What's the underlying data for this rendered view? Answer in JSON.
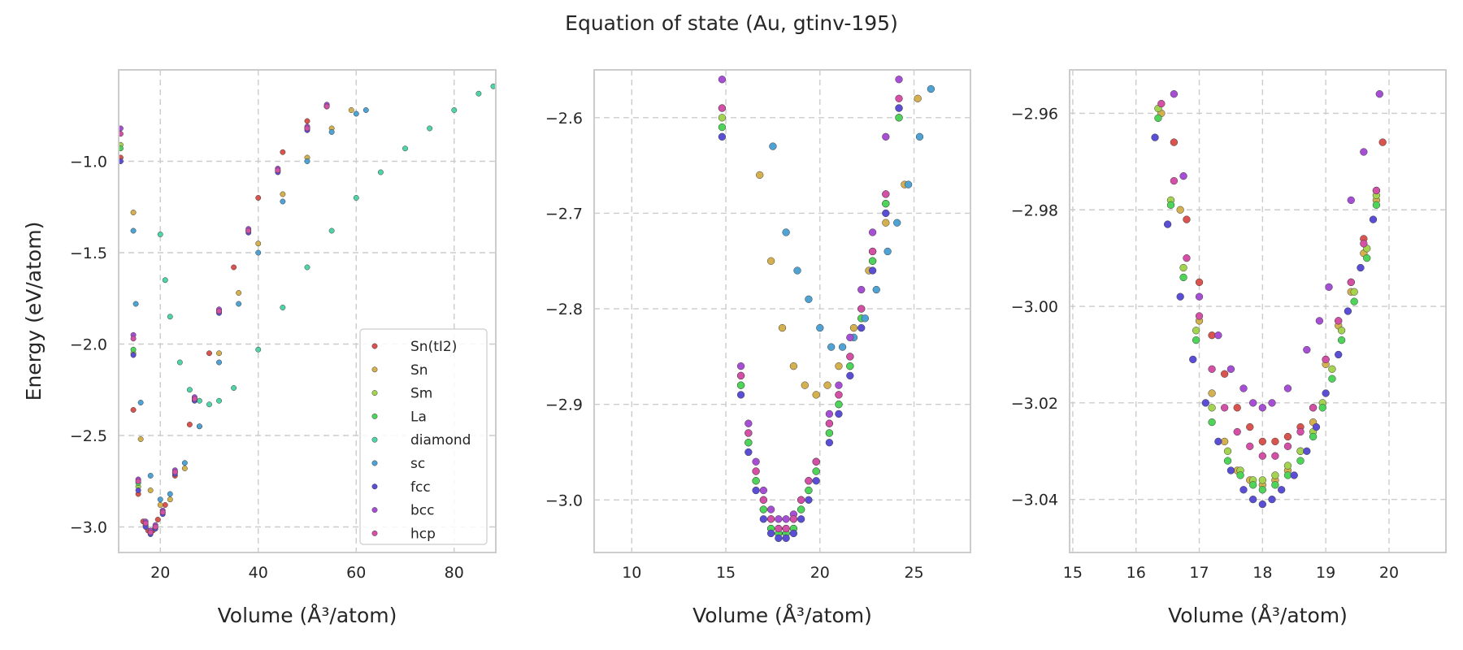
{
  "figure": {
    "title": "Equation of state (Au, gtinv-195)",
    "xlabel": "Volume (Å³/atom)",
    "ylabel": "Energy (eV/atom)"
  },
  "colors": {
    "Sn(tI2)": "#d9534f",
    "Sn": "#d4b04f",
    "Sm": "#a4d44f",
    "La": "#4fd45a",
    "diamond": "#4fd4a8",
    "sc": "#4fa3d4",
    "fcc": "#5a4fd4",
    "bcc": "#a64fd4",
    "hcp": "#d44fa6"
  },
  "chart_data": [
    {
      "type": "scatter",
      "xlim": [
        11.5,
        88.5
      ],
      "ylim": [
        -3.14,
        -0.5
      ],
      "xticks": [
        20,
        40,
        60,
        80
      ],
      "yticks": [
        -3.0,
        -2.5,
        -2.0,
        -1.5,
        -1.0
      ],
      "grid": true,
      "legend": "bottom-right",
      "series": [
        {
          "name": "Sn(tI2)",
          "x": [
            11.9,
            14.5,
            15.5,
            16.5,
            17.5,
            18.5,
            19.5,
            21.0,
            23.0,
            26.0,
            30.0,
            35.0,
            40.0,
            45.0,
            50.0,
            54.0
          ],
          "y": [
            -0.98,
            -2.36,
            -2.82,
            -2.97,
            -3.02,
            -3.02,
            -2.96,
            -2.88,
            -2.72,
            -2.44,
            -2.05,
            -1.58,
            -1.2,
            -0.95,
            -0.78,
            -0.7
          ]
        },
        {
          "name": "Sn",
          "x": [
            14.5,
            16.0,
            18.0,
            20.0,
            22.0,
            25.0,
            28.0,
            32.0,
            36.0,
            40.0,
            45.0,
            50.0,
            55.0,
            59.0
          ],
          "y": [
            -1.28,
            -2.52,
            -2.8,
            -2.88,
            -2.85,
            -2.68,
            -2.45,
            -2.05,
            -1.72,
            -1.45,
            -1.18,
            -0.98,
            -0.82,
            -0.72
          ]
        },
        {
          "name": "Sm",
          "x": [
            11.9,
            14.5,
            15.5,
            17.0,
            18.0,
            19.0,
            20.5,
            23.0,
            27.0,
            32.0,
            38.0,
            44.0,
            50.0,
            54.0
          ],
          "y": [
            -0.91,
            -2.05,
            -2.78,
            -2.99,
            -3.03,
            -3.0,
            -2.92,
            -2.7,
            -2.3,
            -1.82,
            -1.38,
            -1.05,
            -0.82,
            -0.7
          ]
        },
        {
          "name": "La",
          "x": [
            11.9,
            14.5,
            15.5,
            17.0,
            18.0,
            19.0,
            20.5,
            23.0,
            27.0,
            32.0,
            38.0,
            44.0,
            50.0,
            54.0
          ],
          "y": [
            -0.93,
            -2.03,
            -2.76,
            -2.99,
            -3.03,
            -3.0,
            -2.92,
            -2.7,
            -2.3,
            -1.82,
            -1.38,
            -1.05,
            -0.82,
            -0.7
          ]
        },
        {
          "name": "diamond",
          "x": [
            20.0,
            21.0,
            22.0,
            24.0,
            26.0,
            28.0,
            30.0,
            32.0,
            35.0,
            40.0,
            45.0,
            50.0,
            55.0,
            60.0,
            65.0,
            70.0,
            75.0,
            80.0,
            85.0,
            88.0
          ],
          "y": [
            -1.4,
            -1.65,
            -1.85,
            -2.1,
            -2.25,
            -2.31,
            -2.33,
            -2.31,
            -2.24,
            -2.03,
            -1.8,
            -1.58,
            -1.38,
            -1.2,
            -1.06,
            -0.93,
            -0.82,
            -0.72,
            -0.63,
            -0.59
          ]
        },
        {
          "name": "sc",
          "x": [
            14.5,
            15.0,
            16.0,
            18.0,
            20.0,
            22.0,
            25.0,
            28.0,
            32.0,
            36.0,
            40.0,
            45.0,
            50.0,
            55.0,
            60.0,
            62.0
          ],
          "y": [
            -1.38,
            -1.78,
            -2.32,
            -2.72,
            -2.85,
            -2.82,
            -2.65,
            -2.45,
            -2.1,
            -1.78,
            -1.5,
            -1.22,
            -1.0,
            -0.84,
            -0.74,
            -0.72
          ]
        },
        {
          "name": "fcc",
          "x": [
            11.9,
            14.5,
            15.5,
            17.0,
            18.0,
            19.0,
            20.5,
            23.0,
            27.0,
            32.0,
            38.0,
            44.0,
            50.0,
            54.0
          ],
          "y": [
            -1.0,
            -2.06,
            -2.8,
            -3.0,
            -3.04,
            -3.01,
            -2.93,
            -2.71,
            -2.31,
            -1.83,
            -1.39,
            -1.06,
            -0.83,
            -0.7
          ]
        },
        {
          "name": "bcc",
          "x": [
            11.9,
            14.5,
            15.5,
            17.0,
            18.0,
            19.0,
            20.5,
            23.0,
            27.0,
            32.0,
            38.0,
            44.0,
            50.0,
            54.0
          ],
          "y": [
            -0.82,
            -1.95,
            -2.74,
            -2.97,
            -3.02,
            -2.99,
            -2.91,
            -2.69,
            -2.29,
            -1.81,
            -1.37,
            -1.04,
            -0.81,
            -0.69
          ]
        },
        {
          "name": "hcp",
          "x": [
            11.9,
            14.5,
            15.5,
            17.0,
            18.0,
            19.0,
            20.5,
            23.0,
            27.0,
            32.0,
            38.0,
            44.0,
            50.0,
            54.0
          ],
          "y": [
            -0.85,
            -1.97,
            -2.75,
            -2.98,
            -3.03,
            -3.0,
            -2.92,
            -2.7,
            -2.3,
            -1.82,
            -1.38,
            -1.05,
            -0.82,
            -0.7
          ]
        }
      ]
    },
    {
      "type": "scatter",
      "xlim": [
        8.0,
        28.0
      ],
      "ylim": [
        -3.055,
        -2.55
      ],
      "xticks": [
        10,
        15,
        20,
        25
      ],
      "yticks": [
        -3.0,
        -2.9,
        -2.8,
        -2.7,
        -2.6
      ],
      "grid": true,
      "series": [
        {
          "name": "Sn(tI2)",
          "x": [
            14.8,
            15.8,
            16.2,
            16.6,
            17.0,
            17.4,
            17.8,
            18.2,
            18.6,
            19.0,
            19.4,
            19.8,
            20.5,
            21.0,
            21.6,
            22.2,
            22.8,
            23.5,
            24.2
          ],
          "y": [
            -2.59,
            -2.87,
            -2.93,
            -2.97,
            -3.0,
            -3.02,
            -3.03,
            -3.03,
            -3.02,
            -3.0,
            -2.98,
            -2.96,
            -2.92,
            -2.89,
            -2.85,
            -2.8,
            -2.74,
            -2.68,
            -2.59
          ]
        },
        {
          "name": "Sn",
          "x": [
            16.8,
            17.4,
            18.0,
            18.6,
            19.2,
            19.8,
            20.4,
            21.0,
            21.8,
            22.6,
            23.5,
            24.5,
            25.2
          ],
          "y": [
            -2.66,
            -2.75,
            -2.82,
            -2.86,
            -2.88,
            -2.89,
            -2.88,
            -2.86,
            -2.82,
            -2.76,
            -2.71,
            -2.67,
            -2.58
          ]
        },
        {
          "name": "Sm",
          "x": [
            14.8,
            15.8,
            16.2,
            16.6,
            17.0,
            17.4,
            17.8,
            18.2,
            18.6,
            19.0,
            19.4,
            19.8,
            20.5,
            21.0,
            21.6,
            22.2,
            22.8,
            23.5,
            24.2
          ],
          "y": [
            -2.6,
            -2.88,
            -2.94,
            -2.98,
            -3.01,
            -3.03,
            -3.035,
            -3.035,
            -3.03,
            -3.01,
            -2.99,
            -2.97,
            -2.93,
            -2.9,
            -2.86,
            -2.81,
            -2.75,
            -2.69,
            -2.6
          ]
        },
        {
          "name": "La",
          "x": [
            14.8,
            15.8,
            16.2,
            16.6,
            17.0,
            17.4,
            17.8,
            18.2,
            18.6,
            19.0,
            19.4,
            19.8,
            20.5,
            21.0,
            21.6,
            22.2,
            22.8,
            23.5,
            24.2
          ],
          "y": [
            -2.61,
            -2.88,
            -2.94,
            -2.98,
            -3.01,
            -3.03,
            -3.035,
            -3.035,
            -3.03,
            -3.01,
            -2.99,
            -2.97,
            -2.93,
            -2.9,
            -2.86,
            -2.81,
            -2.75,
            -2.69,
            -2.6
          ]
        },
        {
          "name": "sc",
          "x": [
            17.5,
            18.2,
            18.8,
            19.4,
            20.0,
            20.6,
            21.2,
            21.8,
            22.4,
            23.0,
            23.6,
            24.1,
            24.7,
            25.3,
            25.9
          ],
          "y": [
            -2.63,
            -2.72,
            -2.76,
            -2.79,
            -2.82,
            -2.84,
            -2.84,
            -2.83,
            -2.81,
            -2.78,
            -2.74,
            -2.71,
            -2.67,
            -2.62,
            -2.57
          ]
        },
        {
          "name": "fcc",
          "x": [
            14.8,
            15.8,
            16.2,
            16.6,
            17.0,
            17.4,
            17.8,
            18.2,
            18.6,
            19.0,
            19.4,
            19.8,
            20.5,
            21.0,
            21.6,
            22.2,
            22.8,
            23.5,
            24.2
          ],
          "y": [
            -2.62,
            -2.89,
            -2.95,
            -2.99,
            -3.02,
            -3.035,
            -3.04,
            -3.04,
            -3.035,
            -3.02,
            -3.0,
            -2.98,
            -2.94,
            -2.91,
            -2.87,
            -2.82,
            -2.76,
            -2.7,
            -2.59
          ]
        },
        {
          "name": "bcc",
          "x": [
            14.8,
            15.8,
            16.2,
            16.6,
            17.0,
            17.4,
            17.8,
            18.2,
            18.6,
            19.0,
            19.4,
            19.8,
            20.5,
            21.0,
            21.6,
            22.2,
            22.8,
            23.5,
            24.2
          ],
          "y": [
            -2.56,
            -2.86,
            -2.92,
            -2.96,
            -2.99,
            -3.01,
            -3.02,
            -3.02,
            -3.015,
            -3.0,
            -2.98,
            -2.96,
            -2.91,
            -2.88,
            -2.83,
            -2.78,
            -2.72,
            -2.62,
            -2.56
          ]
        },
        {
          "name": "hcp",
          "x": [
            14.8,
            15.8,
            16.2,
            16.6,
            17.0,
            17.4,
            17.8,
            18.2,
            18.6,
            19.0,
            19.4,
            19.8,
            20.5,
            21.0,
            21.6,
            22.2,
            22.8,
            23.5,
            24.2
          ],
          "y": [
            -2.59,
            -2.87,
            -2.93,
            -2.97,
            -3.0,
            -3.02,
            -3.03,
            -3.03,
            -3.02,
            -3.0,
            -2.98,
            -2.96,
            -2.92,
            -2.89,
            -2.85,
            -2.8,
            -2.74,
            -2.68,
            -2.58
          ]
        }
      ]
    },
    {
      "type": "scatter",
      "xlim": [
        14.95,
        20.9
      ],
      "ylim": [
        -3.051,
        -2.951
      ],
      "xticks": [
        15,
        16,
        17,
        18,
        19,
        20
      ],
      "yticks": [
        -3.04,
        -3.02,
        -3.0,
        -2.98,
        -2.96
      ],
      "grid": true,
      "series": [
        {
          "name": "Sn(tI2)",
          "x": [
            16.6,
            16.8,
            17.0,
            17.2,
            17.4,
            17.6,
            17.8,
            18.0,
            18.2,
            18.4,
            18.6,
            18.8,
            19.0,
            19.2,
            19.4,
            19.6,
            19.8,
            19.9
          ],
          "y": [
            -2.966,
            -2.982,
            -2.995,
            -3.006,
            -3.014,
            -3.021,
            -3.025,
            -3.028,
            -3.028,
            -3.027,
            -3.025,
            -3.021,
            -3.011,
            -3.003,
            -2.995,
            -2.986,
            -2.976,
            -2.966
          ]
        },
        {
          "name": "Sn",
          "x": [
            16.4,
            16.7,
            17.0,
            17.2,
            17.4,
            17.6,
            17.8,
            18.0,
            18.2,
            18.4,
            18.6,
            18.8,
            19.0,
            19.2,
            19.4,
            19.6,
            19.8
          ],
          "y": [
            -2.96,
            -2.98,
            -3.003,
            -3.018,
            -3.028,
            -3.034,
            -3.036,
            -3.037,
            -3.036,
            -3.034,
            -3.03,
            -3.024,
            -3.012,
            -3.004,
            -2.997,
            -2.989,
            -2.978
          ]
        },
        {
          "name": "Sm",
          "x": [
            16.35,
            16.55,
            16.75,
            16.95,
            17.2,
            17.45,
            17.65,
            17.85,
            18.0,
            18.2,
            18.4,
            18.6,
            18.8,
            18.95,
            19.1,
            19.25,
            19.45,
            19.65,
            19.8
          ],
          "y": [
            -2.959,
            -2.978,
            -2.992,
            -3.005,
            -3.021,
            -3.03,
            -3.034,
            -3.036,
            -3.036,
            -3.035,
            -3.033,
            -3.03,
            -3.026,
            -3.02,
            -3.013,
            -3.005,
            -2.997,
            -2.988,
            -2.977
          ]
        },
        {
          "name": "La",
          "x": [
            16.35,
            16.55,
            16.75,
            16.95,
            17.2,
            17.45,
            17.65,
            17.85,
            18.0,
            18.2,
            18.4,
            18.6,
            18.8,
            18.95,
            19.1,
            19.25,
            19.45,
            19.65,
            19.8
          ],
          "y": [
            -2.961,
            -2.979,
            -2.994,
            -3.007,
            -3.024,
            -3.032,
            -3.035,
            -3.037,
            -3.038,
            -3.037,
            -3.035,
            -3.032,
            -3.027,
            -3.021,
            -3.015,
            -3.007,
            -2.999,
            -2.99,
            -2.979
          ]
        },
        {
          "name": "fcc",
          "x": [
            16.3,
            16.5,
            16.7,
            16.9,
            17.1,
            17.3,
            17.5,
            17.7,
            17.85,
            18.0,
            18.15,
            18.3,
            18.5,
            18.7,
            18.85,
            19.0,
            19.2,
            19.35,
            19.55,
            19.75
          ],
          "y": [
            -2.965,
            -2.983,
            -2.998,
            -3.011,
            -3.02,
            -3.028,
            -3.034,
            -3.038,
            -3.04,
            -3.041,
            -3.04,
            -3.038,
            -3.035,
            -3.03,
            -3.025,
            -3.018,
            -3.01,
            -3.001,
            -2.992,
            -2.982
          ]
        },
        {
          "name": "bcc",
          "x": [
            16.6,
            16.75,
            17.0,
            17.3,
            17.5,
            17.7,
            17.85,
            18.0,
            18.15,
            18.4,
            18.7,
            18.9,
            19.05,
            19.4,
            19.6,
            19.85
          ],
          "y": [
            -2.956,
            -2.973,
            -2.998,
            -3.006,
            -3.013,
            -3.017,
            -3.02,
            -3.021,
            -3.02,
            -3.017,
            -3.009,
            -3.003,
            -2.996,
            -2.978,
            -2.968,
            -2.956
          ]
        },
        {
          "name": "hcp",
          "x": [
            16.4,
            16.6,
            16.8,
            17.0,
            17.2,
            17.4,
            17.6,
            17.8,
            18.0,
            18.2,
            18.4,
            18.6,
            18.8,
            19.0,
            19.2,
            19.4,
            19.6,
            19.8
          ],
          "y": [
            -2.958,
            -2.974,
            -2.99,
            -3.002,
            -3.013,
            -3.021,
            -3.026,
            -3.029,
            -3.031,
            -3.031,
            -3.029,
            -3.026,
            -3.021,
            -3.011,
            -3.003,
            -2.995,
            -2.987,
            -2.976
          ]
        }
      ]
    }
  ]
}
